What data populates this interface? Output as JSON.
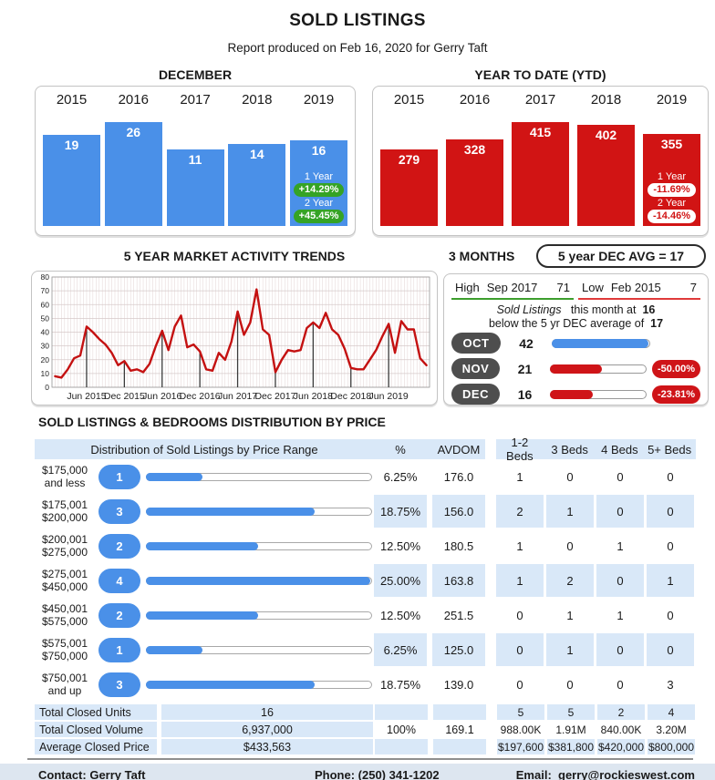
{
  "report": {
    "title": "SOLD LISTINGS",
    "subtitle": "Report produced on Feb 16, 2020 for Gerry Taft"
  },
  "colors": {
    "blue": "#4a90e8",
    "red": "#cf1418",
    "green": "#35a325",
    "cell_blue": "#d9e8f8",
    "dark_pill": "#4e4e4e",
    "line_red": "#c41111"
  },
  "chart_data": [
    {
      "type": "bar",
      "title": "DECEMBER",
      "categories": [
        "2015",
        "2016",
        "2017",
        "2018",
        "2019"
      ],
      "values": [
        19,
        26,
        11,
        14,
        16
      ],
      "bar_color": "#4a90e8",
      "annotation": {
        "one_year_label": "1 Year",
        "one_year": "+14.29%",
        "two_year_label": "2 Year",
        "two_year": "+45.45%",
        "pill_bg": "#35a325",
        "pill_fg": "#ffffff"
      }
    },
    {
      "type": "bar",
      "title": "YEAR TO DATE (YTD)",
      "categories": [
        "2015",
        "2016",
        "2017",
        "2018",
        "2019"
      ],
      "values": [
        279,
        328,
        415,
        402,
        355
      ],
      "bar_color": "#d11414",
      "annotation": {
        "one_year_label": "1 Year",
        "one_year": "-11.69%",
        "two_year_label": "2 Year",
        "two_year": "-14.46%",
        "pill_bg": "#ffffff",
        "pill_fg": "#d11414"
      }
    },
    {
      "type": "line",
      "title": "5 YEAR MARKET ACTIVITY TRENDS",
      "ylim": [
        0,
        80
      ],
      "ytick_step": 10,
      "x_tick_labels": [
        "Jun 2015",
        "Dec 2015",
        "Jun 2016",
        "Dec 2016",
        "Jun 2017",
        "Dec 2017",
        "Jun 2018",
        "Dec 2018",
        "Jun 2019"
      ],
      "marker_month_indices": [
        5,
        11,
        17,
        23,
        29,
        35,
        41,
        47,
        53
      ],
      "series": [
        {
          "name": "Sold Listings",
          "values": [
            8,
            7,
            13,
            21,
            23,
            44,
            40,
            35,
            31,
            25,
            16,
            19,
            12,
            13,
            11,
            17,
            30,
            41,
            27,
            44,
            52,
            29,
            31,
            26,
            13,
            12,
            25,
            20,
            33,
            55,
            38,
            47,
            71,
            42,
            38,
            11,
            20,
            27,
            26,
            27,
            43,
            47,
            43,
            54,
            42,
            38,
            28,
            14,
            13,
            13,
            20,
            27,
            37,
            46,
            25,
            48,
            42,
            42,
            21,
            16
          ]
        }
      ],
      "line_color": "#c41111"
    }
  ],
  "three_months": {
    "heading": "3 MONTHS",
    "avg_note": "5 year DEC AVG = 17",
    "high": {
      "label": "High",
      "period": "Sep 2017",
      "value": "71"
    },
    "low": {
      "label": "Low",
      "period": "Feb 2015",
      "value": "7"
    },
    "note1_italic": "Sold Listings",
    "note1_text": "this month at",
    "note1_value": "16",
    "note2_text": "below the 5 yr DEC average of",
    "note2_value": "17",
    "bar_max": 42,
    "rows": [
      {
        "month": "OCT",
        "value": "42",
        "fill_pct": 100,
        "fill_color": "#4a90e8",
        "change": ""
      },
      {
        "month": "NOV",
        "value": "21",
        "fill_pct": 55,
        "fill_color": "#cf1418",
        "change": "-50.00%"
      },
      {
        "month": "DEC",
        "value": "16",
        "fill_pct": 45,
        "fill_color": "#cf1418",
        "change": "-23.81%"
      }
    ]
  },
  "distribution": {
    "section_title": "SOLD LISTINGS & BEDROOMS DISTRIBUTION BY PRICE",
    "headers": {
      "main": "Distribution of Sold Listings by Price Range",
      "pct": "%",
      "avdom": "AVDOM",
      "beds": [
        "1-2 Beds",
        "3 Beds",
        "4 Beds",
        "5+ Beds"
      ]
    },
    "max_count": 4,
    "rows": [
      {
        "range": [
          "$175,000",
          "and less"
        ],
        "count": 1,
        "pct": "6.25%",
        "avdom": "176.0",
        "beds": [
          "1",
          "0",
          "0",
          "0"
        ],
        "shaded": false
      },
      {
        "range": [
          "$175,001",
          "$200,000"
        ],
        "count": 3,
        "pct": "18.75%",
        "avdom": "156.0",
        "beds": [
          "2",
          "1",
          "0",
          "0"
        ],
        "shaded": true
      },
      {
        "range": [
          "$200,001",
          "$275,000"
        ],
        "count": 2,
        "pct": "12.50%",
        "avdom": "180.5",
        "beds": [
          "1",
          "0",
          "1",
          "0"
        ],
        "shaded": false
      },
      {
        "range": [
          "$275,001",
          "$450,000"
        ],
        "count": 4,
        "pct": "25.00%",
        "avdom": "163.8",
        "beds": [
          "1",
          "2",
          "0",
          "1"
        ],
        "shaded": true
      },
      {
        "range": [
          "$450,001",
          "$575,000"
        ],
        "count": 2,
        "pct": "12.50%",
        "avdom": "251.5",
        "beds": [
          "0",
          "1",
          "1",
          "0"
        ],
        "shaded": false
      },
      {
        "range": [
          "$575,001",
          "$750,000"
        ],
        "count": 1,
        "pct": "6.25%",
        "avdom": "125.0",
        "beds": [
          "0",
          "1",
          "0",
          "0"
        ],
        "shaded": true
      },
      {
        "range": [
          "$750,001",
          "and up"
        ],
        "count": 3,
        "pct": "18.75%",
        "avdom": "139.0",
        "beds": [
          "0",
          "0",
          "0",
          "3"
        ],
        "shaded": false
      }
    ],
    "totals": [
      {
        "label": "Total Closed Units",
        "value": "16",
        "pct": "",
        "avdom": "",
        "beds": [
          "5",
          "5",
          "2",
          "4"
        ],
        "beds_shaded": true
      },
      {
        "label": "Total Closed Volume",
        "value": "6,937,000",
        "pct": "100%",
        "avdom": "169.1",
        "beds": [
          "988.00K",
          "1.91M",
          "840.00K",
          "3.20M"
        ],
        "beds_shaded": false
      },
      {
        "label": "Average Closed Price",
        "value": "$433,563",
        "pct": "",
        "avdom": "",
        "beds": [
          "$197,600",
          "$381,800",
          "$420,000",
          "$800,000"
        ],
        "beds_shaded": true
      }
    ]
  },
  "footer": {
    "contact": "Contact: Gerry Taft",
    "phone": "Phone: (250) 341-1202",
    "email_label": "Email:",
    "email": "gerry@rockieswest.com"
  }
}
